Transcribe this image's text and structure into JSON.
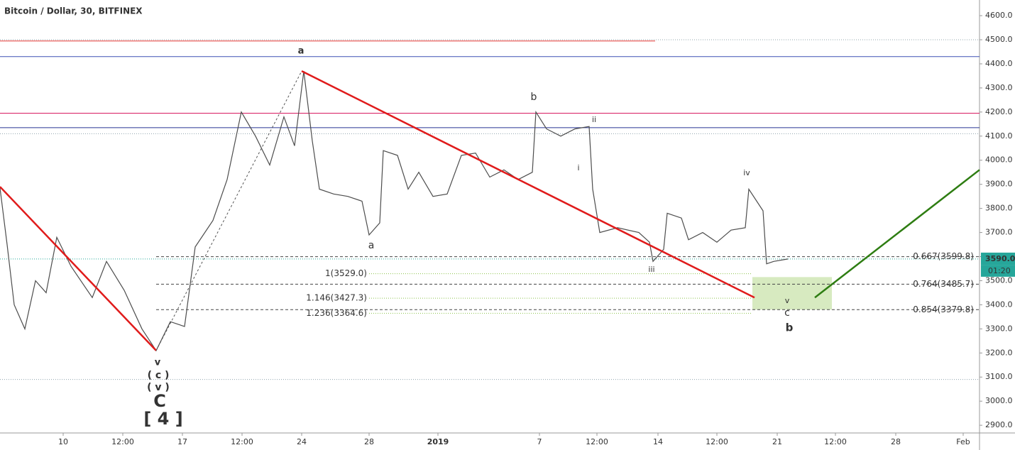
{
  "chart_data": {
    "type": "line",
    "title": "Bitcoin / Dollar, 30, BITFINEX",
    "xlim": [
      0,
      690
    ],
    "ylim": [
      2868,
      4665
    ],
    "yticks": [
      {
        "value": 2900,
        "label": "2900.0"
      },
      {
        "value": 3000,
        "label": "3000.0"
      },
      {
        "value": 3100,
        "label": "3100.0"
      },
      {
        "value": 3200,
        "label": "3200.0"
      },
      {
        "value": 3300,
        "label": "3300.0"
      },
      {
        "value": 3400,
        "label": "3400.0"
      },
      {
        "value": 3500,
        "label": "3500.0"
      },
      {
        "value": 3600,
        "label": "3600.0"
      },
      {
        "value": 3700,
        "label": "3700.0"
      },
      {
        "value": 3800,
        "label": "3800.0"
      },
      {
        "value": 3900,
        "label": "3900.0"
      },
      {
        "value": 4000,
        "label": "4000.0"
      },
      {
        "value": 4100,
        "label": "4100.0"
      },
      {
        "value": 4200,
        "label": "4200.0"
      },
      {
        "value": 4300,
        "label": "4300.0"
      },
      {
        "value": 4400,
        "label": "4400.0"
      },
      {
        "value": 4500,
        "label": "4500.0"
      },
      {
        "value": 4600,
        "label": "4600.0"
      }
    ],
    "xticks": [
      {
        "value": 44.5,
        "label": "10"
      },
      {
        "value": 86.5,
        "label": "12:00"
      },
      {
        "value": 128.5,
        "label": "17"
      },
      {
        "value": 170.5,
        "label": "12:00"
      },
      {
        "value": 212.5,
        "label": "24"
      },
      {
        "value": 260,
        "label": "28"
      },
      {
        "value": 308.5,
        "label": "2019"
      },
      {
        "value": 380,
        "label": "7"
      },
      {
        "value": 420.5,
        "label": "12:00"
      },
      {
        "value": 463.5,
        "label": "14"
      },
      {
        "value": 505,
        "label": "12:00"
      },
      {
        "value": 547.5,
        "label": "21"
      },
      {
        "value": 588.5,
        "label": "12:00"
      },
      {
        "value": 631,
        "label": "28"
      },
      {
        "value": 678.5,
        "label": "Feb"
      }
    ],
    "series": [
      {
        "color": "#4d4d4d",
        "x": [
          0,
          5,
          10,
          17.5,
          25,
          32.5,
          40,
          50,
          65,
          75,
          87.5,
          100,
          110,
          120,
          130,
          137.5,
          150,
          160,
          170,
          180,
          190,
          200,
          207.5,
          214,
          220,
          225,
          235,
          245,
          255,
          260,
          267.5,
          270,
          280,
          287.5,
          295,
          305,
          315,
          325,
          335,
          345,
          355,
          365,
          375,
          377.5,
          385,
          395,
          405,
          415,
          417.5,
          422.5,
          435,
          450,
          457.5,
          460,
          467.5,
          470,
          480,
          485,
          495,
          505,
          515,
          525,
          527.5,
          537.5,
          540,
          545,
          555
        ],
        "values": [
          3885,
          3650,
          3400,
          3300,
          3500,
          3450,
          3680,
          3560,
          3430,
          3580,
          3460,
          3300,
          3210,
          3330,
          3310,
          3640,
          3750,
          3920,
          4200,
          4100,
          3980,
          4180,
          4060,
          4370,
          4080,
          3880,
          3860,
          3850,
          3830,
          3690,
          3740,
          4040,
          4020,
          3880,
          3950,
          3850,
          3860,
          4020,
          4030,
          3930,
          3960,
          3920,
          3950,
          4200,
          4130,
          4100,
          4130,
          4140,
          3880,
          3700,
          3720,
          3700,
          3660,
          3580,
          3630,
          3780,
          3760,
          3670,
          3700,
          3660,
          3710,
          3720,
          3880,
          3790,
          3570,
          3580,
          3590
        ]
      }
    ],
    "hlines": [
      {
        "value": 4495,
        "color": "#e53935",
        "x1": 461.5
      },
      {
        "value": 4500,
        "color": "#90a4ae",
        "dashed": true
      },
      {
        "value": 4430,
        "color": "#3f51b5"
      },
      {
        "value": 4195,
        "color": "#d81b60"
      },
      {
        "value": 4135,
        "color": "#283593"
      },
      {
        "value": 4110,
        "color": "#90a4ae",
        "dashed": true
      },
      {
        "value": 3590,
        "color": "#26a69a",
        "dashed": true
      },
      {
        "value": 3090,
        "color": "#90a4ae",
        "dashed": true
      }
    ],
    "fib_levels": [
      {
        "value": 3599.8,
        "label": "0.667(3599.8)",
        "x0": 110
      },
      {
        "value": 3485.7,
        "label": "0.764(3485.7)",
        "x0": 110
      },
      {
        "value": 3379.8,
        "label": "0.854(3379.8)",
        "x0": 110
      }
    ],
    "ext_levels": [
      {
        "value": 3529.0,
        "label": "1(3529.0)"
      },
      {
        "value": 3427.3,
        "label": "1.146(3427.3)"
      },
      {
        "value": 3364.6,
        "label": "1.236(3364.6)"
      }
    ],
    "segments": [
      {
        "x": [
          0,
          110
        ],
        "y": [
          3890,
          3210
        ],
        "color": "#e01b1b"
      },
      {
        "x": [
          212.5,
          531.5
        ],
        "y": [
          4370,
          3430
        ],
        "color": "#e01b1b"
      },
      {
        "x": [
          110,
          212.5
        ],
        "y": [
          3210,
          4370
        ],
        "color": "#555",
        "dashed": true
      },
      {
        "x": [
          574,
          690
        ],
        "y": [
          3430,
          3960
        ],
        "color": "#2e7d12"
      }
    ],
    "zone": {
      "x": [
        530,
        586
      ],
      "y": [
        3380,
        3515
      ]
    },
    "annotations": [
      "a",
      "a",
      "b",
      "ii",
      "i",
      "iii",
      "iv",
      "v",
      "c",
      "b",
      "v",
      "( c )",
      "( v )",
      "C",
      "[ 4 ]"
    ],
    "last_price": {
      "value": 3590.0,
      "label": "3590.0"
    },
    "countdown": "01:20"
  }
}
